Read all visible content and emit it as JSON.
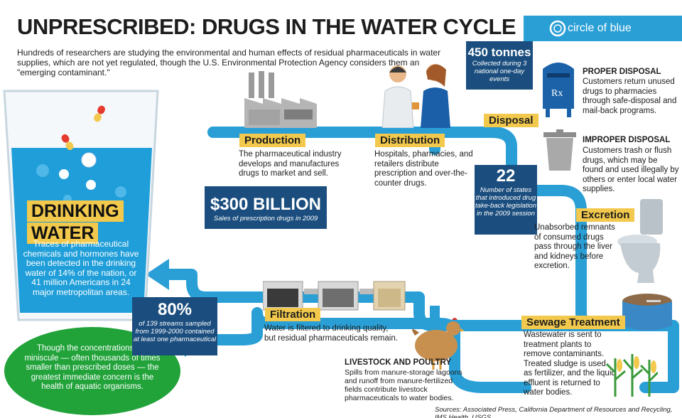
{
  "title": "UNPRESCRIBED: DRUGS IN THE WATER CYCLE",
  "intro": "Hundreds of researchers are studying the environmental and human effects of residual pharmaceuticals in water supplies, which are not yet regulated, though the U.S. Environmental Protection Agency considers them an \"emerging contaminant.\"",
  "brand": "circle of blue",
  "colors": {
    "pipe": "#2a9fd6",
    "navy": "#1b4e7e",
    "label": "#f2c94c",
    "green": "#21a33a"
  },
  "glass": {
    "heading_line1": "DRINKING",
    "heading_line2": "WATER",
    "text": "Traces of pharmaceutical chemicals and hormones have been detected in the drinking water of 14% of the nation, or 41 million Americans in 24 major metropolitan areas."
  },
  "green_circle": "Though the concentrations are miniscule — often thousands of times smaller than prescribed doses — the greatest immediate concern is the health of aquatic organisms.",
  "production": {
    "label": "Production",
    "text": "The pharmaceutical industry develops and manufactures drugs to market and sell."
  },
  "distribution": {
    "label": "Distribution",
    "text": "Hospitals, pharmacies, and retailers distribute prescription and over-the-counter drugs."
  },
  "sales": {
    "value": "$300 BILLION",
    "caption": "Sales of prescription drugs in 2009"
  },
  "disposal": {
    "label": "Disposal"
  },
  "tonnes": {
    "value": "450 tonnes",
    "caption": "Collected during 3 national one-day events"
  },
  "proper": {
    "title": "PROPER DISPOSAL",
    "text": "Customers return unused drugs to pharmacies through safe-disposal and mail-back programs."
  },
  "improper": {
    "title": "IMPROPER DISPOSAL",
    "text": "Customers trash or flush drugs, which may be found and used illegally by others or enter local water supplies."
  },
  "states": {
    "value": "22",
    "caption": "Number of states that introduced drug take-back legislation in the 2009 session"
  },
  "excretion": {
    "label": "Excretion",
    "text": "Unabsorbed remnants of consumed drugs pass through the liver and kidneys before excretion."
  },
  "sewage": {
    "label": "Sewage Treatment",
    "text": "Wastewater is sent to treatment plants to remove contaminants. Treated sludge is used as fertilizer, and the liquid effluent is returned to water bodies."
  },
  "filtration": {
    "label": "Filtration",
    "text": "Water is filtered to drinking quality, but residual pharmaceuticals remain."
  },
  "livestock": {
    "title": "LIVESTOCK AND POULTRY",
    "text": "Spills from manure-storage lagoons and runoff from manure-fertilized fields contribute livestock pharmaceuticals to water bodies."
  },
  "streams": {
    "value": "80%",
    "caption": "of 139 streams sampled from 1999-2000 contained at least one pharmaceutical"
  },
  "mailbox_mark": "Rx",
  "sources": "Sources: Associated Press, California Department of Resources and Recycling, IMS Health, USGS"
}
